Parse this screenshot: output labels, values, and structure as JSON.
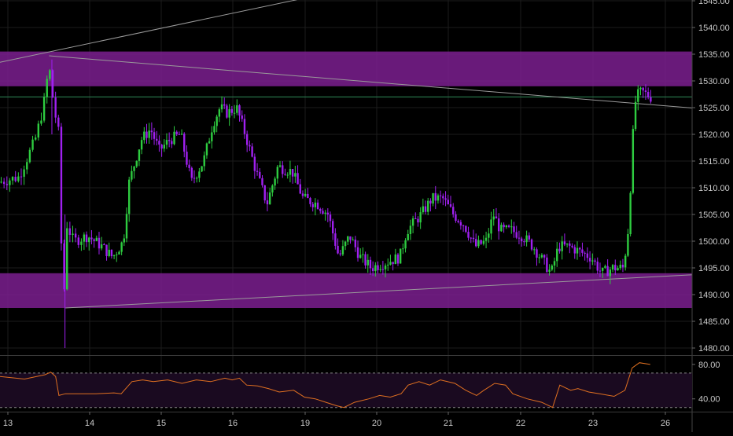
{
  "colors": {
    "background": "#000000",
    "up_candle": "#2ecc40",
    "down_candle": "#a020f0",
    "zone_fill": "#7b1f8f",
    "grid": "#1c1c1c",
    "axis_text": "#c8c8c8",
    "horizontal_line": "#2e8b57",
    "trend_line": "#9a9a9a",
    "rsi_line": "#e07020",
    "rsi_band": "#1a0a20",
    "rsi_level": "#888888"
  },
  "chart_data": [
    {
      "type": "candlestick",
      "title": "",
      "instrument": "",
      "price_axis": {
        "ticks": [
          "1545.00",
          "1540.00",
          "1535.00",
          "1530.00",
          "1525.00",
          "1520.00",
          "1515.00",
          "1510.00",
          "1505.00",
          "1500.00",
          "1495.00",
          "1490.00",
          "1485.00",
          "1480.00"
        ],
        "range": [
          1479,
          1546
        ]
      },
      "time_axis": {
        "ticks": [
          "13",
          "14",
          "15",
          "16",
          "19",
          "20",
          "21",
          "22",
          "23",
          "26"
        ],
        "session_range": [
          0,
          9.6
        ]
      },
      "grid": true,
      "zones": [
        {
          "name": "resistance",
          "from": 1529,
          "to": 1535.5
        },
        {
          "name": "support",
          "from": 1487.5,
          "to": 1494
        }
      ],
      "horizontal_lines": [
        {
          "price": 1527
        }
      ],
      "trend_lines": [
        {
          "from": [
            0,
            1533.5
          ],
          "to": [
            4.1,
            1545.5
          ]
        },
        {
          "from": [
            0.6,
            1534.7
          ],
          "to": [
            9.6,
            1524.8
          ]
        },
        {
          "from": [
            0.8,
            1487.5
          ],
          "to": [
            9.6,
            1493.8
          ]
        }
      ],
      "price_path": [
        [
          0.0,
          1511
        ],
        [
          0.25,
          1512
        ],
        [
          0.45,
          1519
        ],
        [
          0.55,
          1525
        ],
        [
          0.62,
          1533
        ],
        [
          0.68,
          1525
        ],
        [
          0.74,
          1520
        ],
        [
          0.79,
          1486
        ],
        [
          0.84,
          1503
        ],
        [
          0.92,
          1500
        ],
        [
          1.1,
          1501
        ],
        [
          1.3,
          1499
        ],
        [
          1.45,
          1497
        ],
        [
          1.6,
          1500
        ],
        [
          1.68,
          1511
        ],
        [
          1.85,
          1519
        ],
        [
          1.98,
          1521
        ],
        [
          2.1,
          1517
        ],
        [
          2.25,
          1519
        ],
        [
          2.4,
          1520
        ],
        [
          2.55,
          1511
        ],
        [
          2.72,
          1515
        ],
        [
          2.85,
          1522
        ],
        [
          2.95,
          1525
        ],
        [
          3.05,
          1524
        ],
        [
          3.18,
          1525
        ],
        [
          3.3,
          1520
        ],
        [
          3.45,
          1513
        ],
        [
          3.6,
          1507
        ],
        [
          3.75,
          1514
        ],
        [
          3.95,
          1513
        ],
        [
          4.1,
          1508
        ],
        [
          4.3,
          1507
        ],
        [
          4.45,
          1505
        ],
        [
          4.6,
          1497
        ],
        [
          4.75,
          1501
        ],
        [
          4.9,
          1497
        ],
        [
          5.05,
          1495
        ],
        [
          5.25,
          1496
        ],
        [
          5.45,
          1497
        ],
        [
          5.55,
          1502
        ],
        [
          5.75,
          1505
        ],
        [
          5.9,
          1508
        ],
        [
          6.05,
          1508
        ],
        [
          6.2,
          1505
        ],
        [
          6.35,
          1503
        ],
        [
          6.5,
          1499
        ],
        [
          6.65,
          1500
        ],
        [
          6.75,
          1505
        ],
        [
          6.85,
          1502
        ],
        [
          7.0,
          1502
        ],
        [
          7.15,
          1501
        ],
        [
          7.3,
          1499
        ],
        [
          7.45,
          1496
        ],
        [
          7.55,
          1494
        ],
        [
          7.65,
          1499
        ],
        [
          7.8,
          1499
        ],
        [
          7.95,
          1498
        ],
        [
          8.1,
          1497
        ],
        [
          8.25,
          1494
        ],
        [
          8.4,
          1495
        ],
        [
          8.55,
          1495
        ],
        [
          8.62,
          1503
        ],
        [
          8.68,
          1520
        ],
        [
          8.72,
          1527
        ],
        [
          8.8,
          1528
        ],
        [
          8.92,
          1527
        ]
      ]
    },
    {
      "type": "line",
      "title": "",
      "indicator": "",
      "y_axis": {
        "ticks": [
          "80.00",
          "40.00"
        ],
        "range": [
          27,
          89
        ]
      },
      "levels": [
        70,
        30
      ],
      "series": [
        {
          "x": [
            0.0,
            0.3,
            0.55,
            0.62,
            0.68,
            0.72,
            0.8,
            0.9,
            1.2,
            1.45,
            1.55,
            1.7,
            1.85,
            2.0,
            2.2,
            2.4,
            2.6,
            2.8,
            3.0,
            3.1,
            3.2,
            3.3,
            3.45,
            3.6,
            3.75,
            3.95,
            4.1,
            4.25,
            4.4,
            4.55,
            4.65,
            4.8,
            5.0,
            5.15,
            5.3,
            5.45,
            5.55,
            5.7,
            5.85,
            6.0,
            6.2,
            6.35,
            6.5,
            6.6,
            6.75,
            6.9,
            7.0,
            7.2,
            7.4,
            7.55,
            7.65,
            7.8,
            7.9,
            8.05,
            8.2,
            8.4,
            8.55,
            8.65,
            8.75,
            8.9
          ],
          "values": [
            66,
            63,
            68,
            71,
            66,
            44,
            46,
            46,
            46,
            47,
            46,
            60,
            62,
            60,
            62,
            58,
            62,
            60,
            64,
            62,
            64,
            56,
            55,
            52,
            48,
            50,
            42,
            40,
            36,
            32,
            30,
            36,
            40,
            44,
            42,
            46,
            56,
            60,
            56,
            62,
            58,
            50,
            44,
            50,
            58,
            56,
            46,
            40,
            36,
            30,
            56,
            50,
            52,
            48,
            46,
            43,
            50,
            76,
            82,
            80
          ]
        }
      ]
    }
  ]
}
